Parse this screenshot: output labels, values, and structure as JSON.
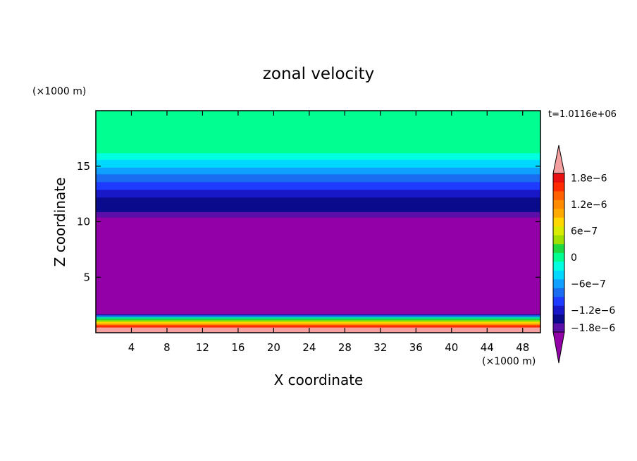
{
  "chart_data": {
    "type": "heatmap",
    "title": "zonal velocity",
    "xlabel": "X coordinate",
    "ylabel": "Z coordinate",
    "x_unit": "(×1000 m)",
    "y_unit": "(×1000 m)",
    "time_label": "t=1.0116e+06",
    "xlim": [
      0,
      50
    ],
    "ylim": [
      0,
      20
    ],
    "x_ticks": [
      4,
      8,
      12,
      16,
      20,
      24,
      28,
      32,
      36,
      40,
      44,
      48
    ],
    "y_ticks": [
      5,
      10,
      15
    ],
    "bands": [
      {
        "z0": 0.0,
        "z1": 0.5,
        "color": "#f5a0a0"
      },
      {
        "z0": 0.5,
        "z1": 0.7,
        "color": "#ff2a00"
      },
      {
        "z0": 0.7,
        "z1": 0.85,
        "color": "#ff8c00"
      },
      {
        "z0": 0.85,
        "z1": 1.0,
        "color": "#ffd800"
      },
      {
        "z0": 1.0,
        "z1": 1.15,
        "color": "#a0e000"
      },
      {
        "z0": 1.15,
        "z1": 1.3,
        "color": "#20d840"
      },
      {
        "z0": 1.3,
        "z1": 1.45,
        "color": "#00ddaa"
      },
      {
        "z0": 1.45,
        "z1": 1.6,
        "color": "#1a6cf0"
      },
      {
        "z0": 1.6,
        "z1": 1.7,
        "color": "#1a1aa0"
      },
      {
        "z0": 1.7,
        "z1": 10.4,
        "color": "#9400a8"
      },
      {
        "z0": 10.4,
        "z1": 10.9,
        "color": "#5a10a8"
      },
      {
        "z0": 10.9,
        "z1": 12.2,
        "color": "#0a0a8c"
      },
      {
        "z0": 12.2,
        "z1": 12.9,
        "color": "#1818c8"
      },
      {
        "z0": 12.9,
        "z1": 13.6,
        "color": "#1e3cff"
      },
      {
        "z0": 13.6,
        "z1": 14.3,
        "color": "#1a6cf0"
      },
      {
        "z0": 14.3,
        "z1": 14.9,
        "color": "#10a0ff"
      },
      {
        "z0": 14.9,
        "z1": 15.6,
        "color": "#00d8ff"
      },
      {
        "z0": 15.6,
        "z1": 16.2,
        "color": "#00ffe0"
      },
      {
        "z0": 16.2,
        "z1": 20.0,
        "color": "#00ff90"
      }
    ],
    "colorbar": {
      "levels": [
        {
          "color": "#5a10a8",
          "label": "−1.8e−6"
        },
        {
          "color": "#0a0a8c",
          "label": ""
        },
        {
          "color": "#1818c8",
          "label": "−1.2e−6"
        },
        {
          "color": "#1e3cff",
          "label": ""
        },
        {
          "color": "#1a6cf0",
          "label": ""
        },
        {
          "color": "#10a0ff",
          "label": "−6e−7"
        },
        {
          "color": "#00d8ff",
          "label": ""
        },
        {
          "color": "#00ffe0",
          "label": ""
        },
        {
          "color": "#00ff90",
          "label": "0"
        },
        {
          "color": "#20d840",
          "label": ""
        },
        {
          "color": "#a0e000",
          "label": ""
        },
        {
          "color": "#d8ec00",
          "label": "6e−7"
        },
        {
          "color": "#ffd800",
          "label": ""
        },
        {
          "color": "#ffaa00",
          "label": ""
        },
        {
          "color": "#ff8c00",
          "label": "1.2e−6"
        },
        {
          "color": "#ff6000",
          "label": ""
        },
        {
          "color": "#ff2a00",
          "label": ""
        },
        {
          "color": "#e81010",
          "label": "1.8e−6"
        }
      ],
      "over_color": "#f5a0a0",
      "under_color": "#9400a8"
    }
  }
}
